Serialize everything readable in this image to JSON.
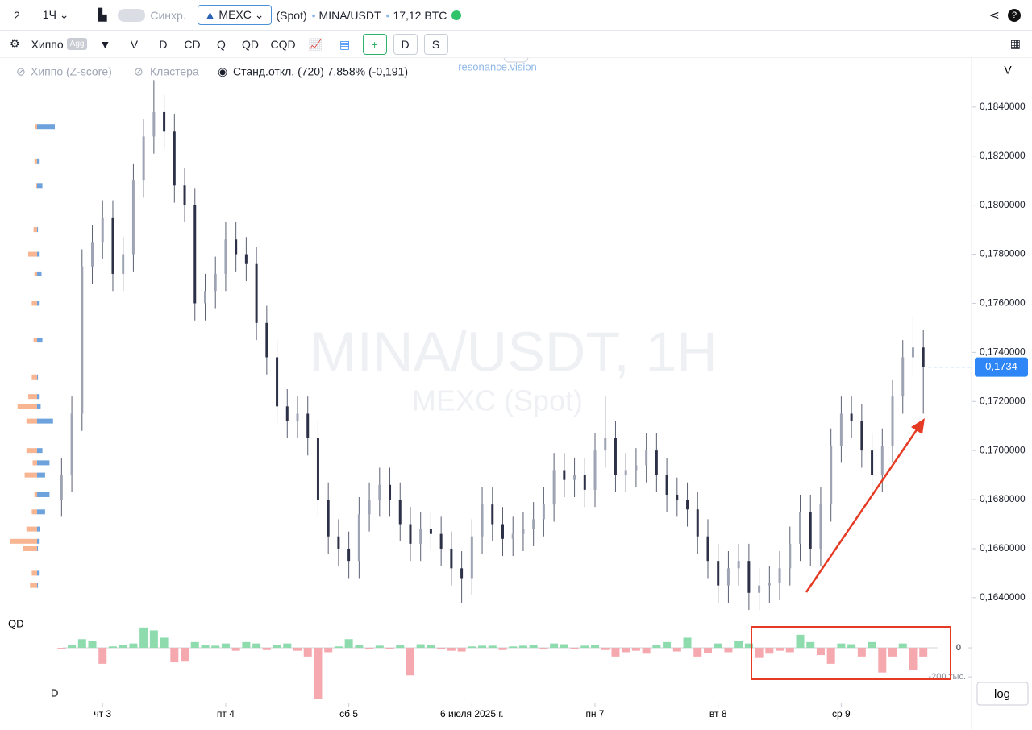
{
  "header": {
    "layout": "2",
    "interval": "1Ч",
    "sync": "Синхр.",
    "exchange": "MEXC",
    "market": "(Spot)",
    "pair": "MINA/USDT",
    "volume": "17,12 BTC"
  },
  "toolbar": {
    "indicator": "Хиппо",
    "agg": "Agg",
    "buttons": [
      "V",
      "D",
      "CD",
      "Q",
      "QD",
      "CQD"
    ],
    "right_buttons": [
      "D",
      "S"
    ]
  },
  "legend": {
    "items": [
      "Хиппо (Z-score)",
      "Кластера",
      "Станд.откл. (720) 7,858% (-0,191)"
    ],
    "brand": "resonance.vision",
    "scale_label": "V"
  },
  "panel_labels": {
    "qd": "QD",
    "d": "D",
    "log": "log"
  },
  "chart_data": [
    {
      "type": "candlestick",
      "title": "MINA/USDT, 1H",
      "subtitle": "MEXC (Spot)",
      "open": [
        0.168,
        0.169,
        0.1715,
        0.1775,
        0.1785,
        0.1795,
        0.1772,
        0.178,
        0.181,
        0.1828,
        0.1838,
        0.183,
        0.1808,
        0.18,
        0.176,
        0.1765,
        0.1772,
        0.1786,
        0.178,
        0.1776,
        0.1752,
        0.1738,
        0.1718,
        0.1712,
        0.1715,
        0.1705,
        0.168,
        0.1665,
        0.166,
        0.1655,
        0.1674,
        0.168,
        0.1686,
        0.168,
        0.167,
        0.1662,
        0.1668,
        0.1666,
        0.166,
        0.1652,
        0.1648,
        0.1665,
        0.1678,
        0.167,
        0.1664,
        0.1666,
        0.1668,
        0.1672,
        0.1678,
        0.1692,
        0.1688,
        0.169,
        0.1684,
        0.17,
        0.1705,
        0.169,
        0.1692,
        0.1694,
        0.17,
        0.169,
        0.1682,
        0.168,
        0.1676,
        0.1665,
        0.1655,
        0.1645,
        0.1652,
        0.1655,
        0.1642,
        0.1645,
        0.1646,
        0.1652,
        0.1662,
        0.1675,
        0.166,
        0.1678,
        0.1702,
        0.1715,
        0.1712,
        0.17,
        0.169,
        0.1702,
        0.1722,
        0.1738,
        0.1742
      ],
      "high": [
        0.1697,
        0.1722,
        0.1782,
        0.1792,
        0.1802,
        0.1802,
        0.1787,
        0.1817,
        0.1835,
        0.1851,
        0.1845,
        0.1837,
        0.1815,
        0.1807,
        0.1772,
        0.1779,
        0.1793,
        0.1793,
        0.1787,
        0.1783,
        0.1759,
        0.1745,
        0.1725,
        0.1722,
        0.1722,
        0.1712,
        0.1687,
        0.1672,
        0.1667,
        0.1681,
        0.1687,
        0.1693,
        0.1693,
        0.1687,
        0.1677,
        0.1675,
        0.1675,
        0.1673,
        0.1667,
        0.1659,
        0.1672,
        0.1685,
        0.1685,
        0.1677,
        0.1673,
        0.1675,
        0.1679,
        0.1685,
        0.1699,
        0.1699,
        0.1697,
        0.1697,
        0.1707,
        0.1722,
        0.1712,
        0.1699,
        0.1701,
        0.1707,
        0.1707,
        0.1697,
        0.1689,
        0.1687,
        0.1683,
        0.1672,
        0.1662,
        0.1659,
        0.1662,
        0.1662,
        0.1652,
        0.1653,
        0.1659,
        0.1669,
        0.1682,
        0.1682,
        0.1685,
        0.1709,
        0.1722,
        0.1722,
        0.1719,
        0.1707,
        0.1709,
        0.1729,
        0.1745,
        0.1755,
        0.1749
      ],
      "low": [
        0.1673,
        0.1683,
        0.1708,
        0.1768,
        0.1778,
        0.1765,
        0.1765,
        0.1773,
        0.1803,
        0.1821,
        0.1823,
        0.1801,
        0.1793,
        0.1753,
        0.1753,
        0.1758,
        0.1765,
        0.1773,
        0.1769,
        0.1745,
        0.1731,
        0.1711,
        0.1705,
        0.1705,
        0.1698,
        0.1673,
        0.1658,
        0.1653,
        0.1648,
        0.1648,
        0.1667,
        0.1673,
        0.1673,
        0.1663,
        0.1655,
        0.1655,
        0.1659,
        0.1653,
        0.1645,
        0.1638,
        0.1641,
        0.1658,
        0.1663,
        0.1657,
        0.1657,
        0.1659,
        0.1661,
        0.1665,
        0.1671,
        0.1681,
        0.1681,
        0.1677,
        0.1677,
        0.1693,
        0.1683,
        0.1683,
        0.1685,
        0.1687,
        0.1683,
        0.1675,
        0.1673,
        0.1669,
        0.1658,
        0.1648,
        0.1638,
        0.1638,
        0.1645,
        0.1635,
        0.1635,
        0.1638,
        0.1639,
        0.1645,
        0.1655,
        0.1653,
        0.1653,
        0.1671,
        0.1695,
        0.1705,
        0.1693,
        0.1683,
        0.1683,
        0.1695,
        0.1715,
        0.1731,
        0.1715
      ],
      "close": [
        0.169,
        0.1715,
        0.1775,
        0.1785,
        0.1795,
        0.1772,
        0.178,
        0.181,
        0.1828,
        0.1838,
        0.183,
        0.1808,
        0.18,
        0.176,
        0.1765,
        0.1772,
        0.1786,
        0.178,
        0.1776,
        0.1752,
        0.1738,
        0.1718,
        0.1712,
        0.1715,
        0.1705,
        0.168,
        0.1665,
        0.166,
        0.1655,
        0.1674,
        0.168,
        0.1686,
        0.168,
        0.167,
        0.1662,
        0.1668,
        0.1666,
        0.166,
        0.1652,
        0.1648,
        0.1665,
        0.1678,
        0.167,
        0.1664,
        0.1666,
        0.1668,
        0.1672,
        0.1678,
        0.1692,
        0.1688,
        0.169,
        0.1684,
        0.17,
        0.1705,
        0.169,
        0.1692,
        0.1694,
        0.17,
        0.169,
        0.1682,
        0.168,
        0.1676,
        0.1665,
        0.1655,
        0.1645,
        0.1652,
        0.1655,
        0.1642,
        0.1645,
        0.1646,
        0.1652,
        0.1662,
        0.1675,
        0.166,
        0.1678,
        0.1702,
        0.1715,
        0.1712,
        0.17,
        0.169,
        0.1702,
        0.1722,
        0.1738,
        0.1742,
        0.1734
      ],
      "up_color": "#9ea4b4",
      "down_color": "#2c3147",
      "xlim": [
        -6,
        88.7
      ],
      "xticks": [
        {
          "value": 4,
          "label": "чт 3"
        },
        {
          "value": 16,
          "label": "пт 4"
        },
        {
          "value": 28,
          "label": "сб 5"
        },
        {
          "value": 40,
          "label": "6 июля 2025 г."
        },
        {
          "value": 52,
          "label": "пн 7"
        },
        {
          "value": 64,
          "label": "вт 8"
        },
        {
          "value": 76,
          "label": "ср 9"
        }
      ],
      "ylim": [
        0.16324,
        0.1859
      ],
      "yticks": [
        {
          "value": 0.164,
          "label": "0,1640000"
        },
        {
          "value": 0.166,
          "label": "0,1660000"
        },
        {
          "value": 0.168,
          "label": "0,1680000"
        },
        {
          "value": 0.17,
          "label": "0,1700000"
        },
        {
          "value": 0.172,
          "label": "0,1720000"
        },
        {
          "value": 0.174,
          "label": "0,1740000"
        },
        {
          "value": 0.176,
          "label": "0,1760000"
        },
        {
          "value": 0.178,
          "label": "0,1780000"
        },
        {
          "value": 0.18,
          "label": "0,1800000"
        },
        {
          "value": 0.182,
          "label": "0,1820000"
        },
        {
          "value": 0.184,
          "label": "0,1840000"
        }
      ],
      "last_price": {
        "value": 0.1734,
        "label": "0,1734"
      },
      "last_price_color": "#2f86f6",
      "profile": {
        "prices": [
          0.1832,
          0.1818,
          0.1808,
          0.179,
          0.178,
          0.1772,
          0.176,
          0.1745,
          0.173,
          0.1722,
          0.1718,
          0.1712,
          0.17,
          0.1695,
          0.169,
          0.1682,
          0.1675,
          0.1668,
          0.1663,
          0.166,
          0.165,
          0.1645
        ],
        "sell": [
          2,
          3,
          1,
          4,
          10,
          3,
          6,
          4,
          6,
          10,
          22,
          12,
          12,
          5,
          14,
          3,
          6,
          12,
          30,
          16,
          6,
          8
        ],
        "buy": [
          20,
          2,
          6,
          1,
          2,
          5,
          2,
          6,
          1,
          2,
          4,
          18,
          6,
          14,
          9,
          14,
          9,
          3,
          2,
          1,
          2,
          1
        ],
        "sell_color": "#f7b591",
        "buy_color": "#6ea2dc"
      }
    },
    {
      "type": "bar",
      "name": "QD",
      "values": [
        -5000,
        20000,
        60000,
        50000,
        -110000,
        10000,
        20000,
        30000,
        140000,
        120000,
        70000,
        -100000,
        -90000,
        40000,
        20000,
        15000,
        30000,
        -20000,
        40000,
        30000,
        -15000,
        20000,
        30000,
        -20000,
        -60000,
        -350000,
        -30000,
        10000,
        60000,
        20000,
        -10000,
        15000,
        -10000,
        20000,
        -190000,
        25000,
        20000,
        -10000,
        -20000,
        -25000,
        10000,
        15000,
        15000,
        -15000,
        10000,
        15000,
        20000,
        -10000,
        30000,
        25000,
        -10000,
        15000,
        20000,
        -15000,
        -60000,
        -30000,
        -20000,
        -40000,
        20000,
        40000,
        -25000,
        70000,
        -60000,
        -35000,
        30000,
        -30000,
        50000,
        30000,
        -70000,
        -40000,
        -20000,
        -30000,
        90000,
        40000,
        -50000,
        -110000,
        30000,
        25000,
        -60000,
        40000,
        -170000,
        -60000,
        30000,
        -150000,
        -60000
      ],
      "positive_color": "#8edcae",
      "negative_color": "#f5a8ae",
      "ylim": [
        -366000,
        189000
      ],
      "yticks": [
        0,
        {
          "value": -200000,
          "label": "-200 тыс."
        }
      ]
    }
  ]
}
